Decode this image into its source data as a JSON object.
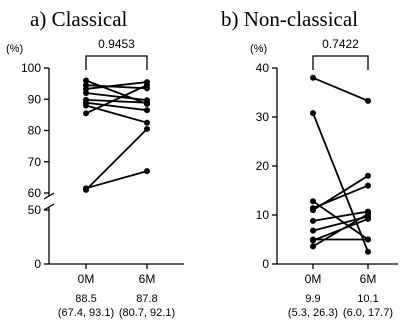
{
  "chart_data": [
    {
      "type": "line",
      "title": "a) Classical",
      "ylabel": "(%)",
      "categories": [
        "0M",
        "6M"
      ],
      "y_ticks": [
        "0",
        "50",
        "60",
        "70",
        "80",
        "90",
        "100"
      ],
      "axis_break": [
        50,
        60
      ],
      "ylim": [
        0,
        100
      ],
      "p_value": "0.9453",
      "summary": [
        {
          "median": "88.5",
          "range": "(67.4, 93.1)"
        },
        {
          "median": "87.8",
          "range": "(80.7, 92.1)"
        }
      ],
      "series": [
        {
          "values": [
            96.0,
            88.5
          ]
        },
        {
          "values": [
            94.5,
            93.5
          ]
        },
        {
          "values": [
            93.3,
            95.5
          ]
        },
        {
          "values": [
            92.0,
            89.7
          ]
        },
        {
          "values": [
            89.8,
            88.9
          ]
        },
        {
          "values": [
            88.9,
            86.5
          ]
        },
        {
          "values": [
            88.0,
            82.5
          ]
        },
        {
          "values": [
            85.5,
            94.5
          ]
        },
        {
          "values": [
            61.5,
            67.0
          ]
        },
        {
          "values": [
            61.0,
            80.5
          ]
        }
      ]
    },
    {
      "type": "line",
      "title": "b) Non-classical",
      "ylabel": "(%)",
      "categories": [
        "0M",
        "6M"
      ],
      "y_ticks": [
        "0",
        "10",
        "20",
        "30",
        "40"
      ],
      "ylim": [
        0,
        40
      ],
      "p_value": "0.7422",
      "summary": [
        {
          "median": "9.9",
          "range": "(5.3, 26.3)"
        },
        {
          "median": "10.1",
          "range": "(6.0, 17.7)"
        }
      ],
      "series": [
        {
          "values": [
            38.0,
            33.3
          ]
        },
        {
          "values": [
            30.8,
            2.5
          ]
        },
        {
          "values": [
            12.8,
            5.0
          ]
        },
        {
          "values": [
            11.4,
            16.0
          ]
        },
        {
          "values": [
            11.0,
            18.0
          ]
        },
        {
          "values": [
            8.8,
            10.7
          ]
        },
        {
          "values": [
            6.8,
            9.7
          ]
        },
        {
          "values": [
            5.0,
            5.0
          ]
        },
        {
          "values": [
            4.8,
            9.2
          ]
        },
        {
          "values": [
            3.6,
            10.2
          ]
        }
      ]
    }
  ]
}
